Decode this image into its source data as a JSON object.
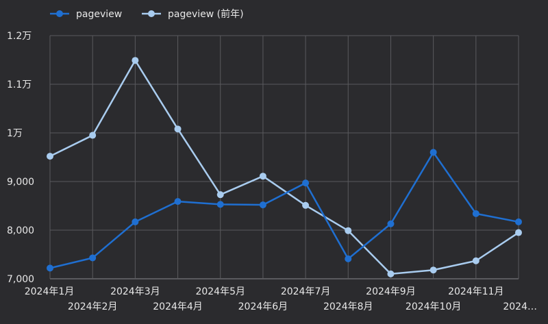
{
  "chart_data": {
    "type": "line",
    "categories": [
      "2024年1月",
      "2024年2月",
      "2024年3月",
      "2024年4月",
      "2024年5月",
      "2024年6月",
      "2024年7月",
      "2024年8月",
      "2024年9月",
      "2024年10月",
      "2024年11月",
      "2024…"
    ],
    "series": [
      {
        "name": "pageview",
        "color": "#1f6fd1",
        "values": [
          7220,
          7430,
          8170,
          8590,
          8530,
          8520,
          8970,
          7410,
          8130,
          9600,
          8340,
          8170
        ]
      },
      {
        "name": "pageview (前年)",
        "color": "#a9ccef",
        "values": [
          9520,
          9950,
          11490,
          10080,
          8730,
          9110,
          8510,
          7990,
          7100,
          7180,
          7370,
          7950
        ]
      }
    ],
    "ylim": [
      7000,
      12000
    ],
    "yticks": [
      {
        "value": 7000,
        "label": "7,000"
      },
      {
        "value": 8000,
        "label": "8,000"
      },
      {
        "value": 9000,
        "label": "9,000"
      },
      {
        "value": 10000,
        "label": "1万"
      },
      {
        "value": 11000,
        "label": "1.1万"
      },
      {
        "value": 12000,
        "label": "1.2万"
      }
    ],
    "grid": true,
    "legend_position": "top-left"
  }
}
